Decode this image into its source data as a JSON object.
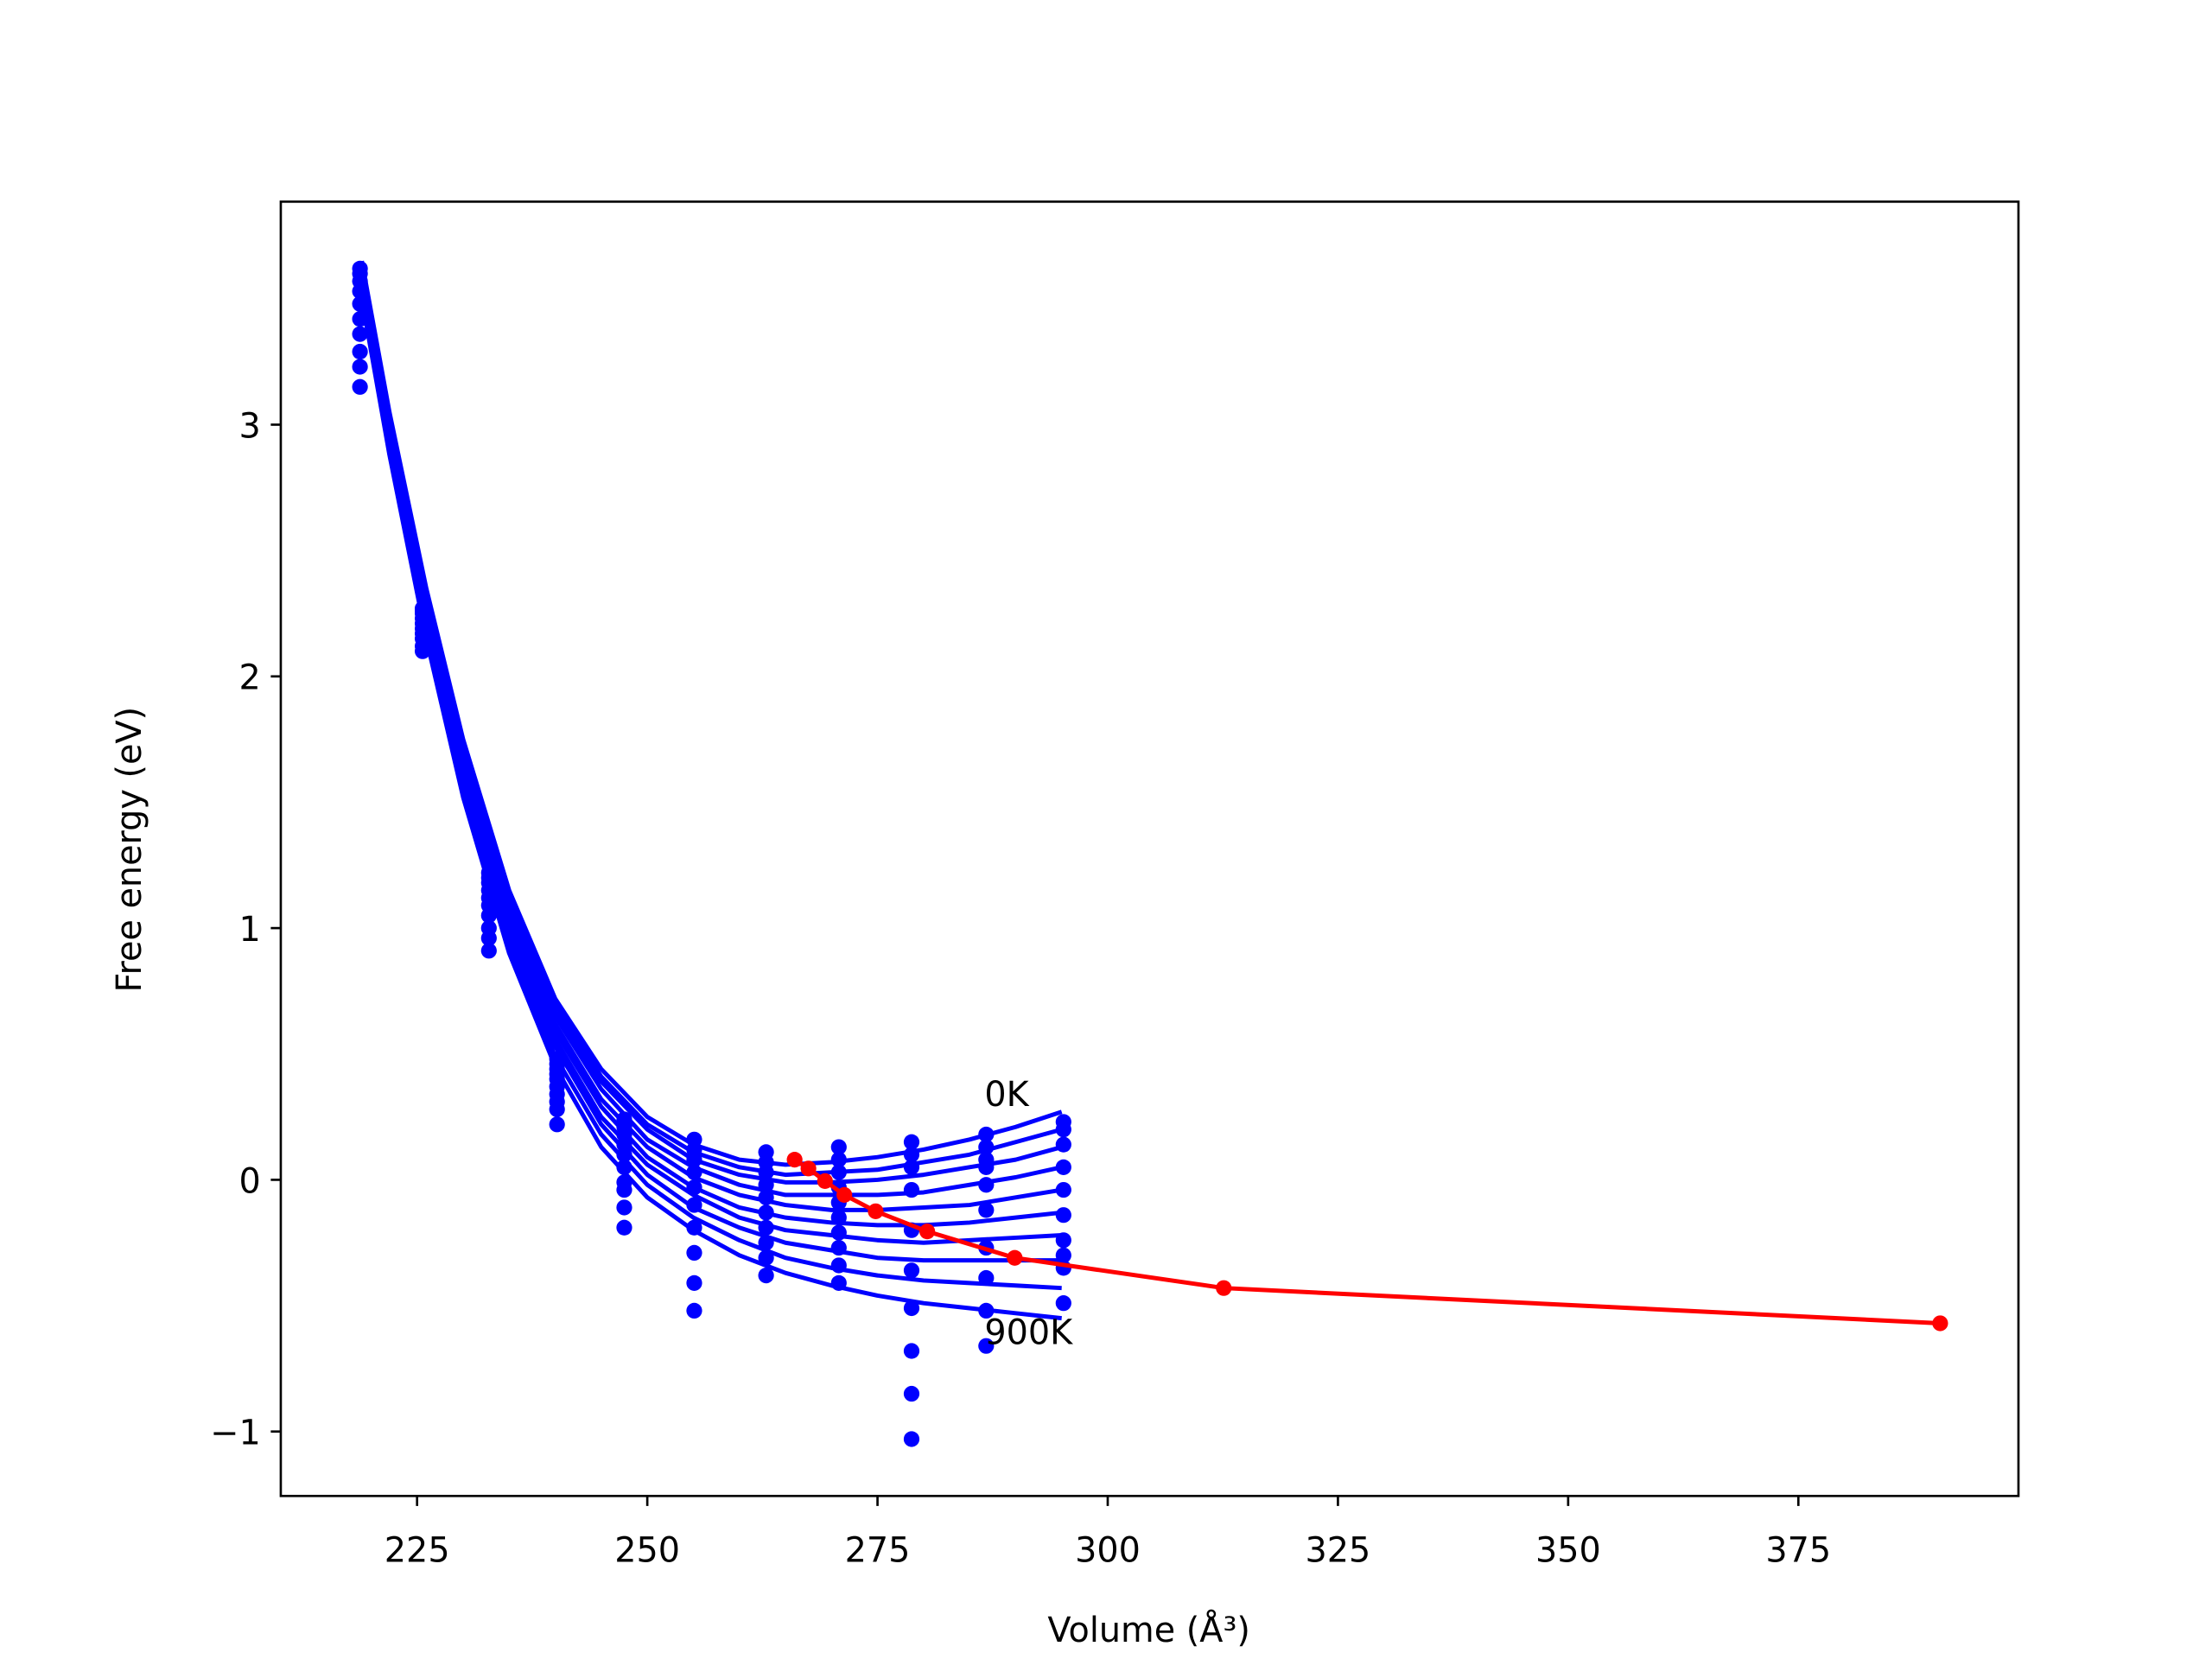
{
  "chart_data": {
    "type": "line",
    "x_label": "Volume (Å³)",
    "y_label": "Free energy (eV)",
    "xlim": [
      210.2,
      398.9
    ],
    "ylim": [
      -1.256,
      3.886
    ],
    "xticks": [
      225,
      250,
      275,
      300,
      325,
      350,
      375
    ],
    "yticks": [
      {
        "value": -1,
        "label": "−1"
      },
      0,
      1,
      2,
      3
    ],
    "curves": {
      "color": "#0000ff",
      "x": [
        219,
        222,
        226,
        230,
        235,
        240,
        245,
        250,
        255,
        260,
        265,
        270,
        275,
        280,
        285,
        290,
        295
      ],
      "series": [
        {
          "values": [
            3.65,
            3.05,
            2.35,
            1.75,
            1.15,
            0.72,
            0.44,
            0.25,
            0.14,
            0.08,
            0.06,
            0.07,
            0.09,
            0.12,
            0.16,
            0.21,
            0.27
          ]
        },
        {
          "values": [
            3.64,
            3.04,
            2.33,
            1.73,
            1.13,
            0.7,
            0.41,
            0.22,
            0.11,
            0.05,
            0.02,
            0.03,
            0.04,
            0.07,
            0.1,
            0.15,
            0.2
          ]
        },
        {
          "values": [
            3.62,
            3.02,
            2.32,
            1.71,
            1.11,
            0.67,
            0.39,
            0.2,
            0.08,
            0.02,
            -0.01,
            -0.01,
            0.0,
            0.02,
            0.05,
            0.08,
            0.13
          ]
        },
        {
          "values": [
            3.61,
            3.0,
            2.3,
            1.69,
            1.08,
            0.65,
            0.36,
            0.16,
            0.05,
            -0.02,
            -0.06,
            -0.06,
            -0.06,
            -0.05,
            -0.02,
            0.01,
            0.05
          ]
        },
        {
          "values": [
            3.59,
            2.99,
            2.27,
            1.66,
            1.06,
            0.62,
            0.32,
            0.13,
            0.01,
            -0.06,
            -0.1,
            -0.12,
            -0.12,
            -0.11,
            -0.1,
            -0.07,
            -0.04
          ]
        },
        {
          "values": [
            3.58,
            2.97,
            2.25,
            1.64,
            1.03,
            0.59,
            0.29,
            0.09,
            -0.03,
            -0.11,
            -0.15,
            -0.17,
            -0.18,
            -0.18,
            -0.17,
            -0.15,
            -0.13
          ]
        },
        {
          "values": [
            3.56,
            2.95,
            2.23,
            1.61,
            1.0,
            0.56,
            0.25,
            0.06,
            -0.06,
            -0.15,
            -0.2,
            -0.22,
            -0.24,
            -0.25,
            -0.24,
            -0.23,
            -0.22
          ]
        },
        {
          "values": [
            3.54,
            2.93,
            2.21,
            1.58,
            0.97,
            0.53,
            0.22,
            0.02,
            -0.11,
            -0.19,
            -0.25,
            -0.28,
            -0.31,
            -0.32,
            -0.32,
            -0.32,
            -0.32
          ]
        },
        {
          "values": [
            3.52,
            2.91,
            2.18,
            1.55,
            0.94,
            0.49,
            0.18,
            -0.02,
            -0.15,
            -0.24,
            -0.31,
            -0.35,
            -0.38,
            -0.4,
            -0.41,
            -0.42,
            -0.43
          ]
        },
        {
          "values": [
            3.5,
            2.88,
            2.15,
            1.52,
            0.9,
            0.45,
            0.13,
            -0.07,
            -0.2,
            -0.3,
            -0.37,
            -0.42,
            -0.46,
            -0.49,
            -0.51,
            -0.53,
            -0.55
          ]
        }
      ]
    },
    "dots": {
      "color": "#0000ff",
      "x": [
        218.8,
        225.6,
        232.8,
        240.2,
        247.5,
        255.1,
        262.9,
        270.8,
        278.7,
        286.8,
        295.2
      ],
      "series": [
        {
          "values": [
            3.62,
            2.27,
            1.22,
            0.48,
            0.24,
            0.16,
            0.11,
            0.13,
            0.15,
            0.18,
            0.23
          ]
        },
        {
          "values": [
            3.6,
            2.26,
            1.2,
            0.46,
            0.21,
            0.12,
            0.07,
            0.08,
            0.1,
            0.13,
            0.2
          ]
        },
        {
          "values": [
            3.57,
            2.25,
            1.18,
            0.44,
            0.18,
            0.08,
            0.03,
            0.03,
            0.05,
            0.08,
            0.14
          ]
        },
        {
          "values": [
            3.53,
            2.23,
            1.15,
            0.42,
            0.14,
            0.03,
            -0.02,
            -0.03,
            -0.04,
            0.05,
            0.05
          ]
        },
        {
          "values": [
            3.48,
            2.21,
            1.12,
            0.4,
            0.1,
            -0.03,
            -0.07,
            -0.09,
            -0.2,
            -0.02,
            -0.04
          ]
        },
        {
          "values": [
            3.42,
            2.19,
            1.09,
            0.37,
            0.05,
            -0.1,
            -0.13,
            -0.15,
            -0.36,
            -0.12,
            -0.14
          ]
        },
        {
          "values": [
            3.36,
            2.17,
            1.05,
            0.34,
            -0.01,
            -0.19,
            -0.19,
            -0.21,
            -0.51,
            -0.27,
            -0.24
          ]
        },
        {
          "values": [
            3.29,
            2.15,
            1.0,
            0.31,
            -0.04,
            -0.29,
            -0.25,
            -0.27,
            -0.68,
            -0.39,
            -0.3
          ]
        },
        {
          "values": [
            3.23,
            2.12,
            0.96,
            0.28,
            -0.11,
            -0.41,
            -0.31,
            -0.34,
            -0.85,
            -0.52,
            -0.35
          ]
        },
        {
          "values": [
            3.15,
            2.1,
            0.91,
            0.22,
            -0.19,
            -0.52,
            -0.38,
            -0.41,
            -1.03,
            -0.66,
            -0.49
          ]
        }
      ]
    },
    "minima": {
      "color": "#ff0000",
      "x": [
        266.0,
        267.5,
        269.3,
        271.4,
        274.8,
        280.4,
        289.9,
        312.6,
        390.4
      ],
      "values": [
        0.08,
        0.045,
        -0.005,
        -0.06,
        -0.125,
        -0.205,
        -0.31,
        -0.43,
        -0.57
      ]
    },
    "annotations": [
      "0K",
      "900K"
    ]
  }
}
